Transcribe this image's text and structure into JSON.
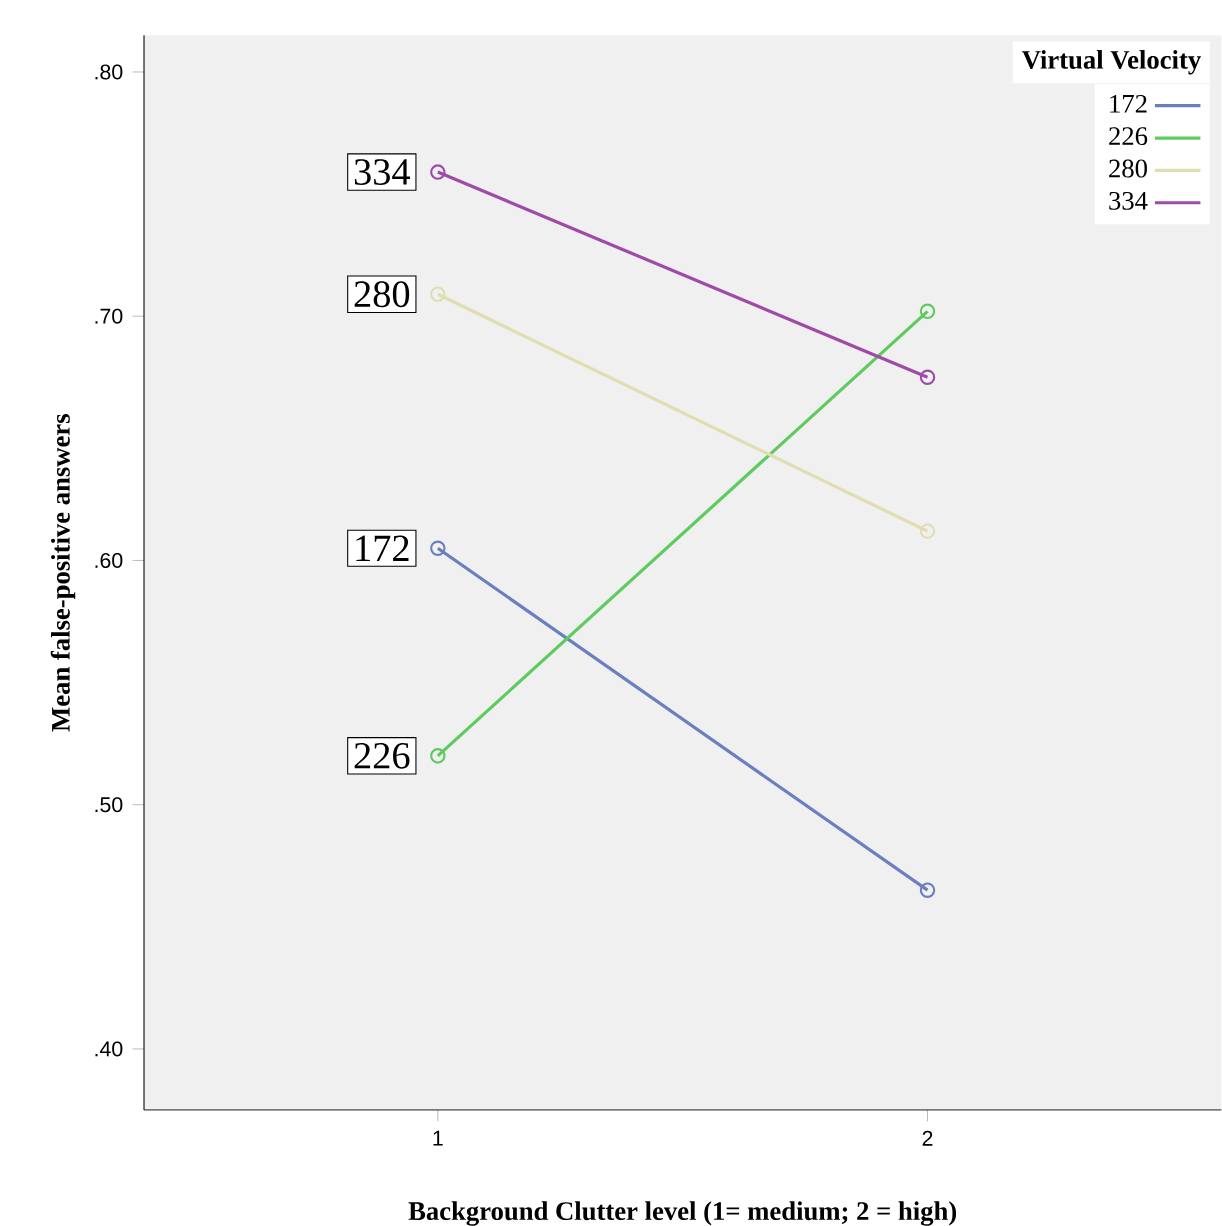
{
  "chart_data": {
    "type": "line",
    "xlabel": "Background Clutter level (1= medium; 2 = high)",
    "ylabel": "Mean false-positive answers",
    "legend_title": "Virtual Velocity",
    "x": [
      1,
      2
    ],
    "xlim": [
      0.4,
      2.6
    ],
    "xticks": [
      1,
      2
    ],
    "ylim": [
      0.375,
      0.815
    ],
    "yticks": [
      {
        "value": 0.4,
        "label": ".40"
      },
      {
        "value": 0.5,
        "label": ".50"
      },
      {
        "value": 0.6,
        "label": ".60"
      },
      {
        "value": 0.7,
        "label": ".70"
      },
      {
        "value": 0.8,
        "label": ".80"
      }
    ],
    "marker": "circle",
    "legend": "top right",
    "grid": false,
    "series": [
      {
        "name": "172",
        "color": "#6a7fc0",
        "values": [
          0.605,
          0.465
        ]
      },
      {
        "name": "226",
        "color": "#5ecb5e",
        "values": [
          0.52,
          0.702
        ]
      },
      {
        "name": "280",
        "color": "#e0deb0",
        "values": [
          0.709,
          0.612
        ]
      },
      {
        "name": "334",
        "color": "#a04aa8",
        "values": [
          0.759,
          0.675
        ]
      }
    ],
    "annotations": [
      {
        "text": "334",
        "y": 0.759
      },
      {
        "text": "280",
        "y": 0.709
      },
      {
        "text": "172",
        "y": 0.605
      },
      {
        "text": "226",
        "y": 0.52
      }
    ]
  }
}
